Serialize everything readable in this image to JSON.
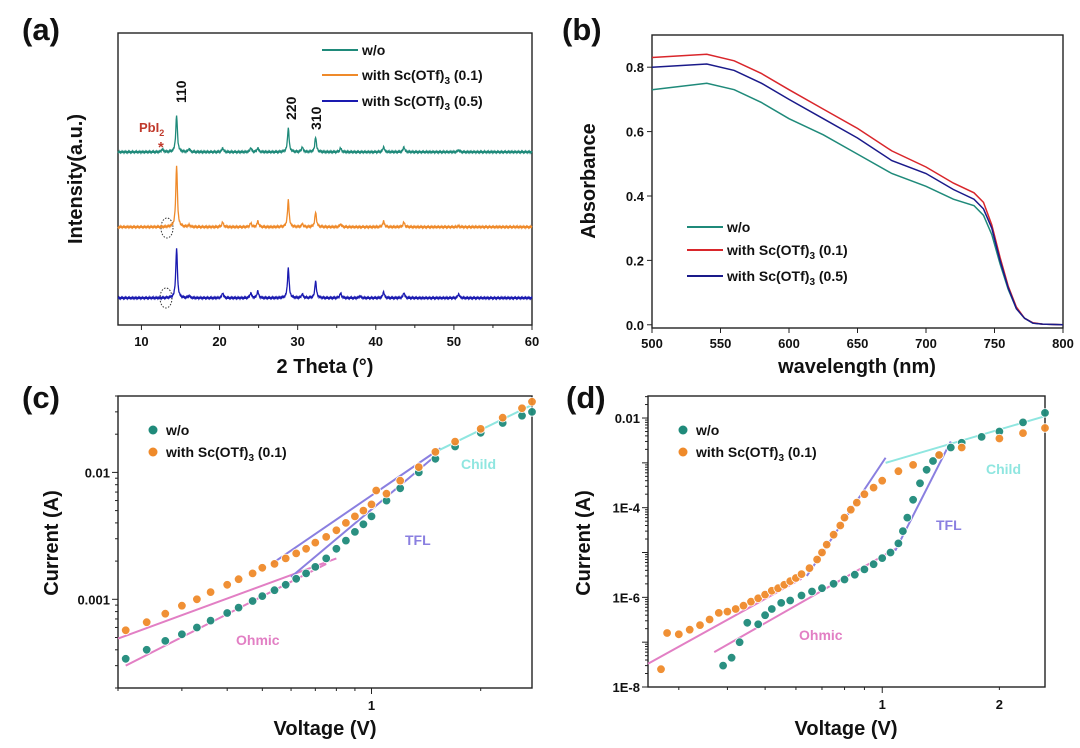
{
  "chart_data": [
    {
      "panel": "(a)",
      "type": "line",
      "xlabel": "2 Theta (°)",
      "ylabel": "Intensity(a.u.)",
      "xlim": [
        7,
        60
      ],
      "xticks": [
        "10",
        "20",
        "30",
        "40",
        "50",
        "60"
      ],
      "grid": false,
      "legend_position": "top-right",
      "series": [
        {
          "name": {
            "pre": "w/o",
            "sub": "",
            "post": ""
          },
          "color": "#1f8a7a",
          "peaks": [
            [
              12.7,
              3
            ],
            [
              14.5,
              37
            ],
            [
              16.1,
              3
            ],
            [
              20.4,
              4
            ],
            [
              24.0,
              4
            ],
            [
              24.9,
              4
            ],
            [
              28.8,
              24
            ],
            [
              30.6,
              5
            ],
            [
              32.3,
              15
            ],
            [
              35.5,
              4
            ],
            [
              41.0,
              5
            ],
            [
              43.6,
              5
            ],
            [
              50.6,
              2
            ]
          ]
        },
        {
          "name": {
            "pre": "with Sc(OTf)",
            "sub": "3",
            "post": " (0.1)"
          },
          "color": "#ef8a2a",
          "peaks": [
            [
              14.5,
              62
            ],
            [
              16.1,
              2
            ],
            [
              20.4,
              5
            ],
            [
              24.0,
              4
            ],
            [
              24.9,
              6
            ],
            [
              28.8,
              27
            ],
            [
              30.6,
              3
            ],
            [
              32.3,
              15
            ],
            [
              35.5,
              3
            ],
            [
              41.0,
              6
            ],
            [
              43.6,
              5
            ],
            [
              50.6,
              1
            ]
          ]
        },
        {
          "name": {
            "pre": "with Sc(OTf)",
            "sub": "3",
            "post": " (0.5)"
          },
          "color": "#1a1ab0",
          "peaks": [
            [
              14.5,
              50
            ],
            [
              16.1,
              2
            ],
            [
              20.4,
              5
            ],
            [
              24.0,
              5
            ],
            [
              24.9,
              7
            ],
            [
              28.8,
              30
            ],
            [
              30.6,
              4
            ],
            [
              32.3,
              17
            ],
            [
              35.5,
              5
            ],
            [
              38.0,
              2
            ],
            [
              41.0,
              6
            ],
            [
              43.6,
              5
            ],
            [
              50.6,
              4
            ]
          ]
        }
      ],
      "annotations": {
        "peak_110": "110",
        "peak_220": "220",
        "peak_310": "310",
        "pbi2": {
          "pre": "PbI",
          "sub": "2"
        },
        "star": "*",
        "pbi2_color": "#c0392b"
      }
    },
    {
      "panel": "(b)",
      "type": "line",
      "xlabel": "wavelength (nm)",
      "ylabel": "Absorbance",
      "xlim": [
        500,
        800
      ],
      "ylim": [
        -0.01,
        0.9
      ],
      "xticks": [
        "500",
        "550",
        "600",
        "650",
        "700",
        "750",
        "800"
      ],
      "yticks": [
        "0.0",
        "0.2",
        "0.4",
        "0.6",
        "0.8"
      ],
      "grid": false,
      "legend_position": "bottom-left",
      "series": [
        {
          "name": {
            "pre": "w/o",
            "sub": "",
            "post": ""
          },
          "color": "#1f8a7a",
          "x": [
            500,
            520,
            540,
            560,
            580,
            600,
            625,
            650,
            675,
            700,
            720,
            735,
            742,
            748,
            754,
            760,
            766,
            772,
            778,
            785,
            800
          ],
          "y": [
            0.73,
            0.74,
            0.75,
            0.73,
            0.69,
            0.64,
            0.59,
            0.53,
            0.47,
            0.43,
            0.39,
            0.37,
            0.34,
            0.28,
            0.19,
            0.11,
            0.05,
            0.02,
            0.005,
            0.002,
            0.0
          ]
        },
        {
          "name": {
            "pre": "with Sc(OTf)",
            "sub": "3",
            "post": " (0.1)"
          },
          "color": "#d9262b",
          "x": [
            500,
            520,
            540,
            560,
            580,
            600,
            625,
            650,
            675,
            700,
            720,
            735,
            742,
            748,
            754,
            760,
            766,
            772,
            778,
            785,
            800
          ],
          "y": [
            0.83,
            0.835,
            0.84,
            0.82,
            0.78,
            0.73,
            0.67,
            0.61,
            0.54,
            0.49,
            0.44,
            0.41,
            0.38,
            0.31,
            0.21,
            0.12,
            0.055,
            0.02,
            0.006,
            0.002,
            0.0
          ]
        },
        {
          "name": {
            "pre": "with Sc(OTf)",
            "sub": "3",
            "post": " (0.5)"
          },
          "color": "#1a1a8a",
          "x": [
            500,
            520,
            540,
            560,
            580,
            600,
            625,
            650,
            675,
            700,
            720,
            735,
            742,
            748,
            754,
            760,
            766,
            772,
            778,
            785,
            800
          ],
          "y": [
            0.8,
            0.805,
            0.81,
            0.79,
            0.75,
            0.7,
            0.64,
            0.58,
            0.51,
            0.47,
            0.42,
            0.39,
            0.36,
            0.3,
            0.2,
            0.115,
            0.05,
            0.02,
            0.005,
            0.002,
            0.0
          ]
        }
      ]
    },
    {
      "panel": "(c)",
      "type": "scatter",
      "xlabel": "Voltage (V)",
      "ylabel": "Current (A)",
      "xscale": "log",
      "yscale": "log",
      "xlim": [
        0.2,
        2.77
      ],
      "ylim": [
        0.0002,
        0.04
      ],
      "xticks": [
        {
          "v": 1,
          "label": "1"
        }
      ],
      "yticks": [
        {
          "v": 0.01,
          "label": "0.01"
        },
        {
          "v": 0.001,
          "label": "0.001"
        }
      ],
      "grid": false,
      "legend_position": "top-left",
      "series": [
        {
          "name": {
            "pre": "w/o",
            "sub": "",
            "post": ""
          },
          "color": "#1f8a7a",
          "x": [
            0.21,
            0.24,
            0.27,
            0.3,
            0.33,
            0.36,
            0.4,
            0.43,
            0.47,
            0.5,
            0.54,
            0.58,
            0.62,
            0.66,
            0.7,
            0.75,
            0.8,
            0.85,
            0.9,
            0.95,
            1.0,
            1.1,
            1.2,
            1.35,
            1.5,
            1.7,
            2.0,
            2.3,
            2.6,
            2.77
          ],
          "y": [
            0.00034,
            0.0004,
            0.00047,
            0.00053,
            0.0006,
            0.00068,
            0.00078,
            0.00086,
            0.00097,
            0.00106,
            0.00118,
            0.0013,
            0.00145,
            0.0016,
            0.0018,
            0.0021,
            0.0025,
            0.0029,
            0.0034,
            0.0039,
            0.0045,
            0.006,
            0.0075,
            0.01,
            0.0128,
            0.016,
            0.0205,
            0.0245,
            0.028,
            0.03
          ]
        },
        {
          "name": {
            "pre": "with Sc(OTf)",
            "sub": "3",
            "post": " (0.1)"
          },
          "color": "#ef8a2a",
          "x": [
            0.21,
            0.24,
            0.27,
            0.3,
            0.33,
            0.36,
            0.4,
            0.43,
            0.47,
            0.5,
            0.54,
            0.58,
            0.62,
            0.66,
            0.7,
            0.75,
            0.8,
            0.85,
            0.9,
            0.95,
            1.0,
            1.03,
            1.1,
            1.2,
            1.35,
            1.5,
            1.7,
            2.0,
            2.3,
            2.6,
            2.77
          ],
          "y": [
            0.00057,
            0.00066,
            0.00077,
            0.00089,
            0.001,
            0.00114,
            0.0013,
            0.00144,
            0.0016,
            0.00177,
            0.0019,
            0.0021,
            0.0023,
            0.0025,
            0.0028,
            0.0031,
            0.0035,
            0.004,
            0.0045,
            0.005,
            0.0056,
            0.0072,
            0.0068,
            0.0086,
            0.011,
            0.0145,
            0.0175,
            0.022,
            0.027,
            0.032,
            0.036
          ]
        }
      ],
      "fits": [
        {
          "label": "Ohmic",
          "color": "#e27fc4",
          "x": [
            0.2,
            0.8
          ],
          "y": [
            0.00049,
            0.0021
          ]
        },
        {
          "label": "Ohmic",
          "color": "#e27fc4",
          "x": [
            0.21,
            0.75
          ],
          "y": [
            0.0003,
            0.0019
          ]
        },
        {
          "label": "TFL",
          "color": "#8a7fe0",
          "x": [
            0.53,
            1.55
          ],
          "y": [
            0.0019,
            0.0155
          ]
        },
        {
          "label": "TFL",
          "color": "#8a7fe0",
          "x": [
            0.6,
            1.5
          ],
          "y": [
            0.0015,
            0.0135
          ]
        },
        {
          "label": "Child",
          "color": "#8fe6e0",
          "x": [
            1.5,
            2.77
          ],
          "y": [
            0.0145,
            0.034
          ]
        }
      ],
      "fit_labels": {
        "ohmic": "Ohmic",
        "tfl": "TFL",
        "child": "Child"
      }
    },
    {
      "panel": "(d)",
      "type": "scatter",
      "xlabel": "Voltage (V)",
      "ylabel": "Current (A)",
      "xscale": "log",
      "yscale": "log",
      "xlim": [
        0.25,
        2.62
      ],
      "ylim": [
        1e-08,
        0.031
      ],
      "xticks": [
        {
          "v": 1,
          "label": "1"
        },
        {
          "v": 2,
          "label": "2"
        }
      ],
      "yticks": [
        {
          "v": 0.01,
          "label": "0.01"
        },
        {
          "v": 0.0001,
          "label": "1E-4"
        },
        {
          "v": 1e-06,
          "label": "1E-6"
        },
        {
          "v": 1e-08,
          "label": "1E-8"
        }
      ],
      "grid": false,
      "legend_position": "top-left",
      "series": [
        {
          "name": {
            "pre": "w/o",
            "sub": "",
            "post": ""
          },
          "color": "#1f8a7a",
          "x": [
            0.39,
            0.41,
            0.43,
            0.45,
            0.48,
            0.5,
            0.52,
            0.55,
            0.58,
            0.62,
            0.66,
            0.7,
            0.75,
            0.8,
            0.85,
            0.9,
            0.95,
            1.0,
            1.05,
            1.1,
            1.13,
            1.16,
            1.2,
            1.25,
            1.3,
            1.35,
            1.4,
            1.5,
            1.6,
            1.8,
            2.0,
            2.3,
            2.62
          ],
          "y": [
            3e-08,
            4.5e-08,
            1e-07,
            2.7e-07,
            2.5e-07,
            4e-07,
            5.5e-07,
            7.5e-07,
            8.5e-07,
            1.1e-06,
            1.35e-06,
            1.6e-06,
            2e-06,
            2.5e-06,
            3.2e-06,
            4.2e-06,
            5.5e-06,
            7.5e-06,
            1e-05,
            1.6e-05,
            3e-05,
            6e-05,
            0.00015,
            0.00035,
            0.0007,
            0.0011,
            0.0015,
            0.0022,
            0.0028,
            0.0038,
            0.005,
            0.008,
            0.013
          ]
        },
        {
          "name": {
            "pre": "with Sc(OTf)",
            "sub": "3",
            "post": " (0.1)"
          },
          "color": "#ef8a2a",
          "x": [
            0.27,
            0.28,
            0.3,
            0.32,
            0.34,
            0.36,
            0.38,
            0.4,
            0.42,
            0.44,
            0.46,
            0.48,
            0.5,
            0.52,
            0.54,
            0.56,
            0.58,
            0.6,
            0.62,
            0.65,
            0.68,
            0.7,
            0.72,
            0.75,
            0.78,
            0.8,
            0.83,
            0.86,
            0.9,
            0.95,
            1.0,
            1.1,
            1.2,
            1.4,
            1.6,
            2.0,
            2.3,
            2.62
          ],
          "y": [
            2.5e-08,
            1.6e-07,
            1.5e-07,
            1.9e-07,
            2.4e-07,
            3.2e-07,
            4.5e-07,
            4.8e-07,
            5.5e-07,
            6.5e-07,
            8e-07,
            9.5e-07,
            1.15e-06,
            1.4e-06,
            1.6e-06,
            1.9e-06,
            2.3e-06,
            2.7e-06,
            3.3e-06,
            4.5e-06,
            7e-06,
            1e-05,
            1.5e-05,
            2.5e-05,
            4e-05,
            6e-05,
            9e-05,
            0.00013,
            0.0002,
            0.00028,
            0.0004,
            0.00065,
            0.0009,
            0.0015,
            0.0022,
            0.0035,
            0.0046,
            0.006
          ]
        }
      ],
      "fits": [
        {
          "label": "Ohmic",
          "color": "#e27fc4",
          "x": [
            0.25,
            0.62
          ],
          "y": [
            3.3e-08,
            2.6e-06
          ]
        },
        {
          "label": "Ohmic",
          "color": "#e27fc4",
          "x": [
            0.37,
            1.08
          ],
          "y": [
            6e-08,
            1.2e-05
          ]
        },
        {
          "label": "TFL",
          "color": "#8a7fe0",
          "x": [
            0.64,
            1.02
          ],
          "y": [
            3e-06,
            0.0013
          ]
        },
        {
          "label": "TFL",
          "color": "#8a7fe0",
          "x": [
            1.08,
            1.5
          ],
          "y": [
            1.1e-05,
            0.003
          ]
        },
        {
          "label": "Child",
          "color": "#8fe6e0",
          "x": [
            1.02,
            2.62
          ],
          "y": [
            0.001,
            0.011
          ]
        }
      ],
      "fit_labels": {
        "ohmic": "Ohmic",
        "tfl": "TFL",
        "child": "Child"
      }
    }
  ]
}
